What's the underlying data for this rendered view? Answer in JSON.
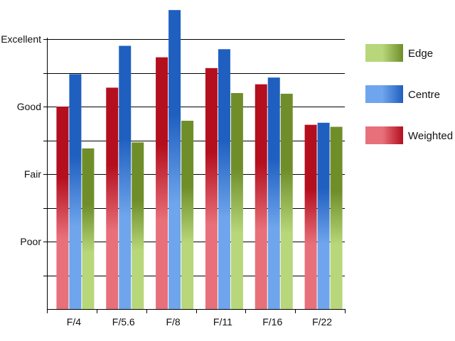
{
  "chart_data": {
    "type": "bar",
    "categories": [
      "F/4",
      "F/5.6",
      "F/8",
      "F/11",
      "F/16",
      "F/22"
    ],
    "y_tick_labels": [
      {
        "value": 1,
        "label": "Poor"
      },
      {
        "value": 2,
        "label": "Fair"
      },
      {
        "value": 3,
        "label": "Good"
      },
      {
        "value": 4,
        "label": "Excellent"
      }
    ],
    "ylim": [
      0,
      4
    ],
    "grid": true,
    "legend_position": "right",
    "series": [
      {
        "name": "Weighted",
        "colors": [
          "#e8707a",
          "#b40f1e"
        ],
        "values": [
          3.0,
          3.28,
          3.73,
          3.57,
          3.33,
          2.73
        ]
      },
      {
        "name": "Centre",
        "colors": [
          "#6fa5ec",
          "#1f5fc0"
        ],
        "values": [
          3.48,
          3.9,
          4.43,
          3.85,
          3.43,
          2.76
        ]
      },
      {
        "name": "Edge",
        "colors": [
          "#b7d77a",
          "#6f8e2a"
        ],
        "values": [
          2.38,
          2.47,
          2.79,
          3.2,
          3.19,
          2.7
        ]
      }
    ],
    "legend_order": [
      "Edge",
      "Centre",
      "Weighted"
    ],
    "xlabel": "",
    "ylabel": "",
    "title": ""
  }
}
